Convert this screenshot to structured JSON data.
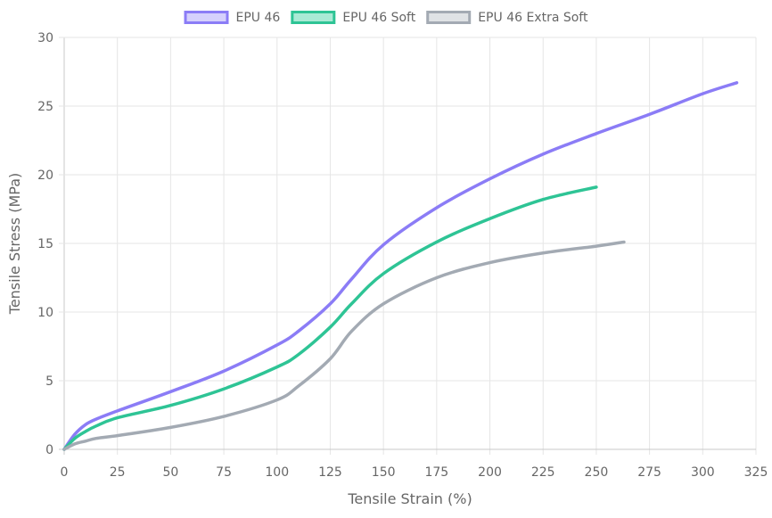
{
  "chart_data": {
    "type": "line",
    "title": "",
    "xlabel": "Tensile Strain (%)",
    "ylabel": "Tensile Stress (MPa)",
    "xlim": [
      0,
      325
    ],
    "ylim": [
      0,
      30
    ],
    "x_ticks": [
      "0",
      "25",
      "50",
      "75",
      "100",
      "125",
      "150",
      "175",
      "200",
      "225",
      "250",
      "275",
      "300",
      "325"
    ],
    "y_ticks": [
      "0",
      "5",
      "10",
      "15",
      "20",
      "25",
      "30"
    ],
    "grid": true,
    "legend_position": "top-center",
    "series": [
      {
        "name": "EPU 46",
        "color": "#8b7cf6",
        "fill": "#d5d0fc",
        "points": [
          [
            0,
            0
          ],
          [
            5,
            1.1
          ],
          [
            10,
            1.8
          ],
          [
            15,
            2.2
          ],
          [
            25,
            2.8
          ],
          [
            50,
            4.2
          ],
          [
            75,
            5.7
          ],
          [
            100,
            7.6
          ],
          [
            110,
            8.6
          ],
          [
            125,
            10.6
          ],
          [
            135,
            12.4
          ],
          [
            150,
            14.9
          ],
          [
            175,
            17.6
          ],
          [
            200,
            19.7
          ],
          [
            225,
            21.5
          ],
          [
            250,
            23.0
          ],
          [
            275,
            24.4
          ],
          [
            300,
            25.9
          ],
          [
            316,
            26.7
          ]
        ]
      },
      {
        "name": "EPU 46 Soft",
        "color": "#2ec495",
        "fill": "#a9ead5",
        "points": [
          [
            0,
            0
          ],
          [
            5,
            0.8
          ],
          [
            10,
            1.3
          ],
          [
            15,
            1.7
          ],
          [
            25,
            2.3
          ],
          [
            50,
            3.2
          ],
          [
            75,
            4.4
          ],
          [
            100,
            6.0
          ],
          [
            110,
            6.9
          ],
          [
            125,
            8.9
          ],
          [
            135,
            10.6
          ],
          [
            150,
            12.8
          ],
          [
            175,
            15.1
          ],
          [
            200,
            16.8
          ],
          [
            225,
            18.2
          ],
          [
            250,
            19.1
          ]
        ]
      },
      {
        "name": "EPU 46 Extra Soft",
        "color": "#a3aab3",
        "fill": "#dfe2e5",
        "points": [
          [
            0,
            0
          ],
          [
            5,
            0.4
          ],
          [
            10,
            0.6
          ],
          [
            15,
            0.8
          ],
          [
            25,
            1.0
          ],
          [
            50,
            1.6
          ],
          [
            75,
            2.4
          ],
          [
            100,
            3.6
          ],
          [
            110,
            4.6
          ],
          [
            125,
            6.6
          ],
          [
            135,
            8.6
          ],
          [
            150,
            10.6
          ],
          [
            175,
            12.5
          ],
          [
            200,
            13.6
          ],
          [
            225,
            14.3
          ],
          [
            250,
            14.8
          ],
          [
            263,
            15.1
          ]
        ]
      }
    ]
  }
}
